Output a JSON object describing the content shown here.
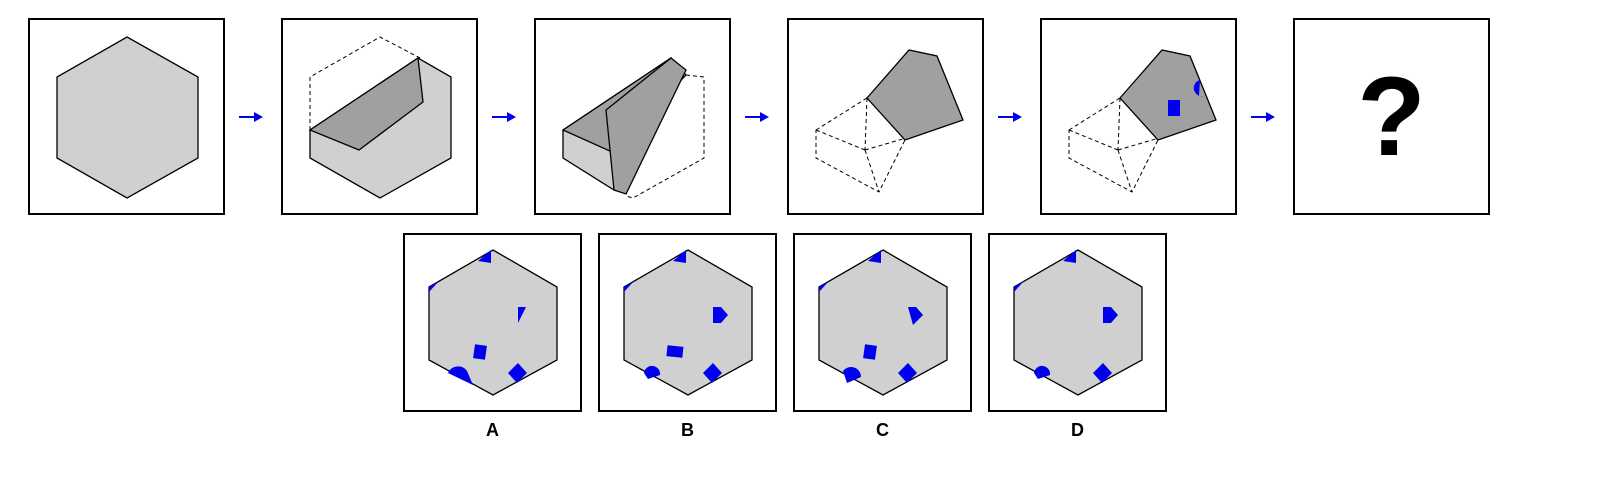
{
  "sequence": {
    "steps": [
      "unfolded-hexagon",
      "first-fold",
      "second-fold",
      "third-fold",
      "punched-holes"
    ],
    "unknown_symbol": "?"
  },
  "options": [
    {
      "label": "A"
    },
    {
      "label": "B"
    },
    {
      "label": "C"
    },
    {
      "label": "D"
    }
  ],
  "colors": {
    "paper_light": "#d0d0d0",
    "paper_dark": "#a0a0a0",
    "hole": "#0000ee",
    "arrow": "#0000ee",
    "outline": "#000000"
  }
}
